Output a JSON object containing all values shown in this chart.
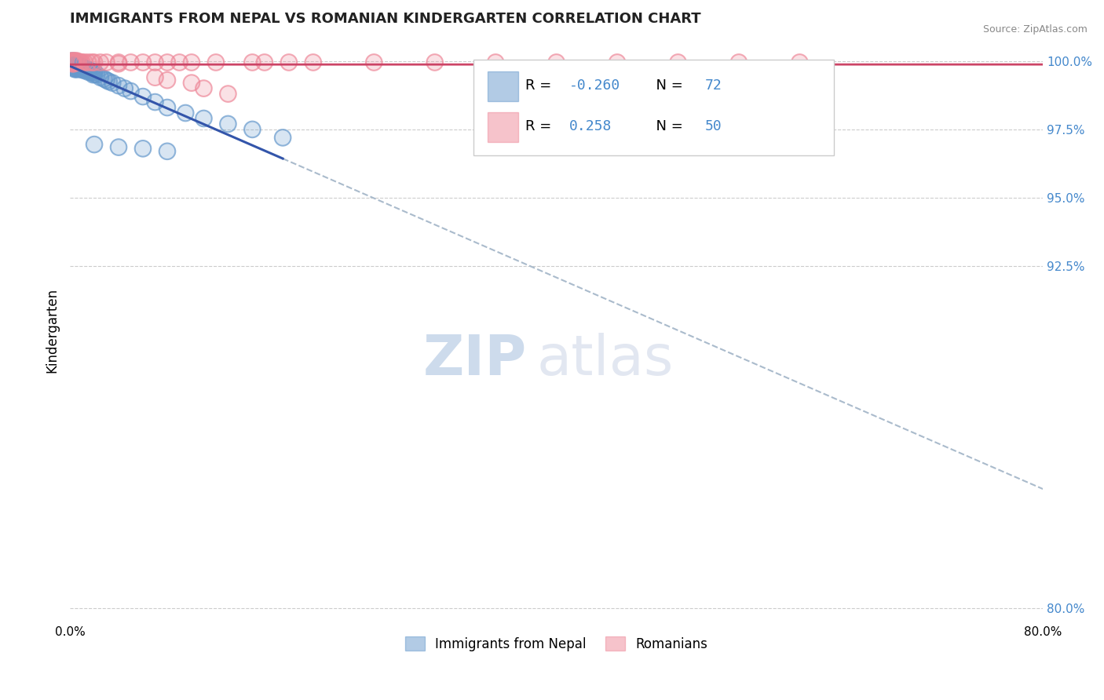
{
  "title": "IMMIGRANTS FROM NEPAL VS ROMANIAN KINDERGARTEN CORRELATION CHART",
  "source": "Source: ZipAtlas.com",
  "ylabel": "Kindergarten",
  "x_min": 0.0,
  "x_max": 0.8,
  "y_min": 0.795,
  "y_max": 1.008,
  "y_ticks": [
    0.8,
    0.925,
    0.95,
    0.975,
    1.0
  ],
  "y_tick_labels": [
    "80.0%",
    "92.5%",
    "95.0%",
    "97.5%",
    "100.0%"
  ],
  "x_ticks": [
    0.0,
    0.8
  ],
  "x_tick_labels": [
    "0.0%",
    "80.0%"
  ],
  "legend_labels": [
    "Immigrants from Nepal",
    "Romanians"
  ],
  "R_nepal": -0.26,
  "N_nepal": 72,
  "R_romanian": 0.258,
  "N_romanian": 50,
  "blue_color": "#6699cc",
  "pink_color": "#ee8899",
  "blue_line_color": "#3355aa",
  "pink_line_color": "#cc4466",
  "nepal_x": [
    0.001,
    0.001,
    0.001,
    0.001,
    0.001,
    0.002,
    0.002,
    0.002,
    0.002,
    0.003,
    0.003,
    0.003,
    0.003,
    0.003,
    0.003,
    0.004,
    0.004,
    0.004,
    0.004,
    0.004,
    0.005,
    0.005,
    0.005,
    0.005,
    0.006,
    0.006,
    0.006,
    0.007,
    0.007,
    0.007,
    0.008,
    0.008,
    0.008,
    0.009,
    0.009,
    0.01,
    0.01,
    0.011,
    0.011,
    0.012,
    0.012,
    0.013,
    0.014,
    0.015,
    0.015,
    0.016,
    0.017,
    0.018,
    0.019,
    0.02,
    0.02,
    0.022,
    0.025,
    0.028,
    0.03,
    0.032,
    0.035,
    0.04,
    0.045,
    0.05,
    0.06,
    0.07,
    0.08,
    0.095,
    0.11,
    0.13,
    0.15,
    0.175,
    0.02,
    0.04,
    0.06,
    0.08
  ],
  "nepal_y": [
    1.0,
    0.9995,
    0.999,
    0.9985,
    0.998,
    0.9995,
    0.999,
    0.9985,
    0.998,
    1.0,
    0.9995,
    0.999,
    0.9985,
    0.998,
    0.9975,
    0.9995,
    0.999,
    0.9985,
    0.998,
    0.997,
    0.999,
    0.9985,
    0.998,
    0.997,
    0.9985,
    0.998,
    0.997,
    0.9985,
    0.998,
    0.9975,
    0.998,
    0.9975,
    0.997,
    0.9978,
    0.997,
    0.9978,
    0.997,
    0.9975,
    0.9968,
    0.997,
    0.9965,
    0.9968,
    0.9965,
    0.9968,
    0.996,
    0.9965,
    0.996,
    0.9958,
    0.995,
    0.996,
    0.9952,
    0.995,
    0.994,
    0.9935,
    0.993,
    0.9925,
    0.992,
    0.991,
    0.99,
    0.989,
    0.987,
    0.985,
    0.983,
    0.981,
    0.979,
    0.977,
    0.975,
    0.972,
    0.9695,
    0.9685,
    0.968,
    0.967
  ],
  "romanian_x": [
    0.001,
    0.001,
    0.002,
    0.002,
    0.002,
    0.003,
    0.003,
    0.003,
    0.004,
    0.004,
    0.005,
    0.005,
    0.006,
    0.006,
    0.007,
    0.008,
    0.009,
    0.01,
    0.012,
    0.015,
    0.018,
    0.02,
    0.025,
    0.03,
    0.04,
    0.04,
    0.05,
    0.06,
    0.07,
    0.08,
    0.09,
    0.1,
    0.12,
    0.15,
    0.18,
    0.2,
    0.25,
    0.3,
    0.35,
    0.4,
    0.45,
    0.5,
    0.55,
    0.6,
    0.07,
    0.08,
    0.1,
    0.11,
    0.13,
    0.16
  ],
  "romanian_y": [
    1.0,
    0.9995,
    1.0,
    0.9995,
    0.999,
    1.0,
    0.9995,
    0.999,
    1.0,
    0.9995,
    1.0,
    0.9995,
    1.0,
    0.9995,
    0.9995,
    0.9995,
    0.9995,
    0.9995,
    0.9995,
    0.9995,
    0.9995,
    0.9995,
    0.9995,
    0.9995,
    0.9995,
    0.999,
    0.9995,
    0.9995,
    0.9995,
    0.9995,
    0.9995,
    0.9995,
    0.9995,
    0.9995,
    0.9995,
    0.9995,
    0.9995,
    0.9995,
    0.9995,
    0.9995,
    0.9995,
    0.9995,
    0.9995,
    0.9995,
    0.994,
    0.993,
    0.992,
    0.99,
    0.988,
    0.9995
  ],
  "watermark_zip": "ZIP",
  "watermark_atlas": "atlas",
  "grid_color": "#cccccc",
  "background_color": "#ffffff"
}
